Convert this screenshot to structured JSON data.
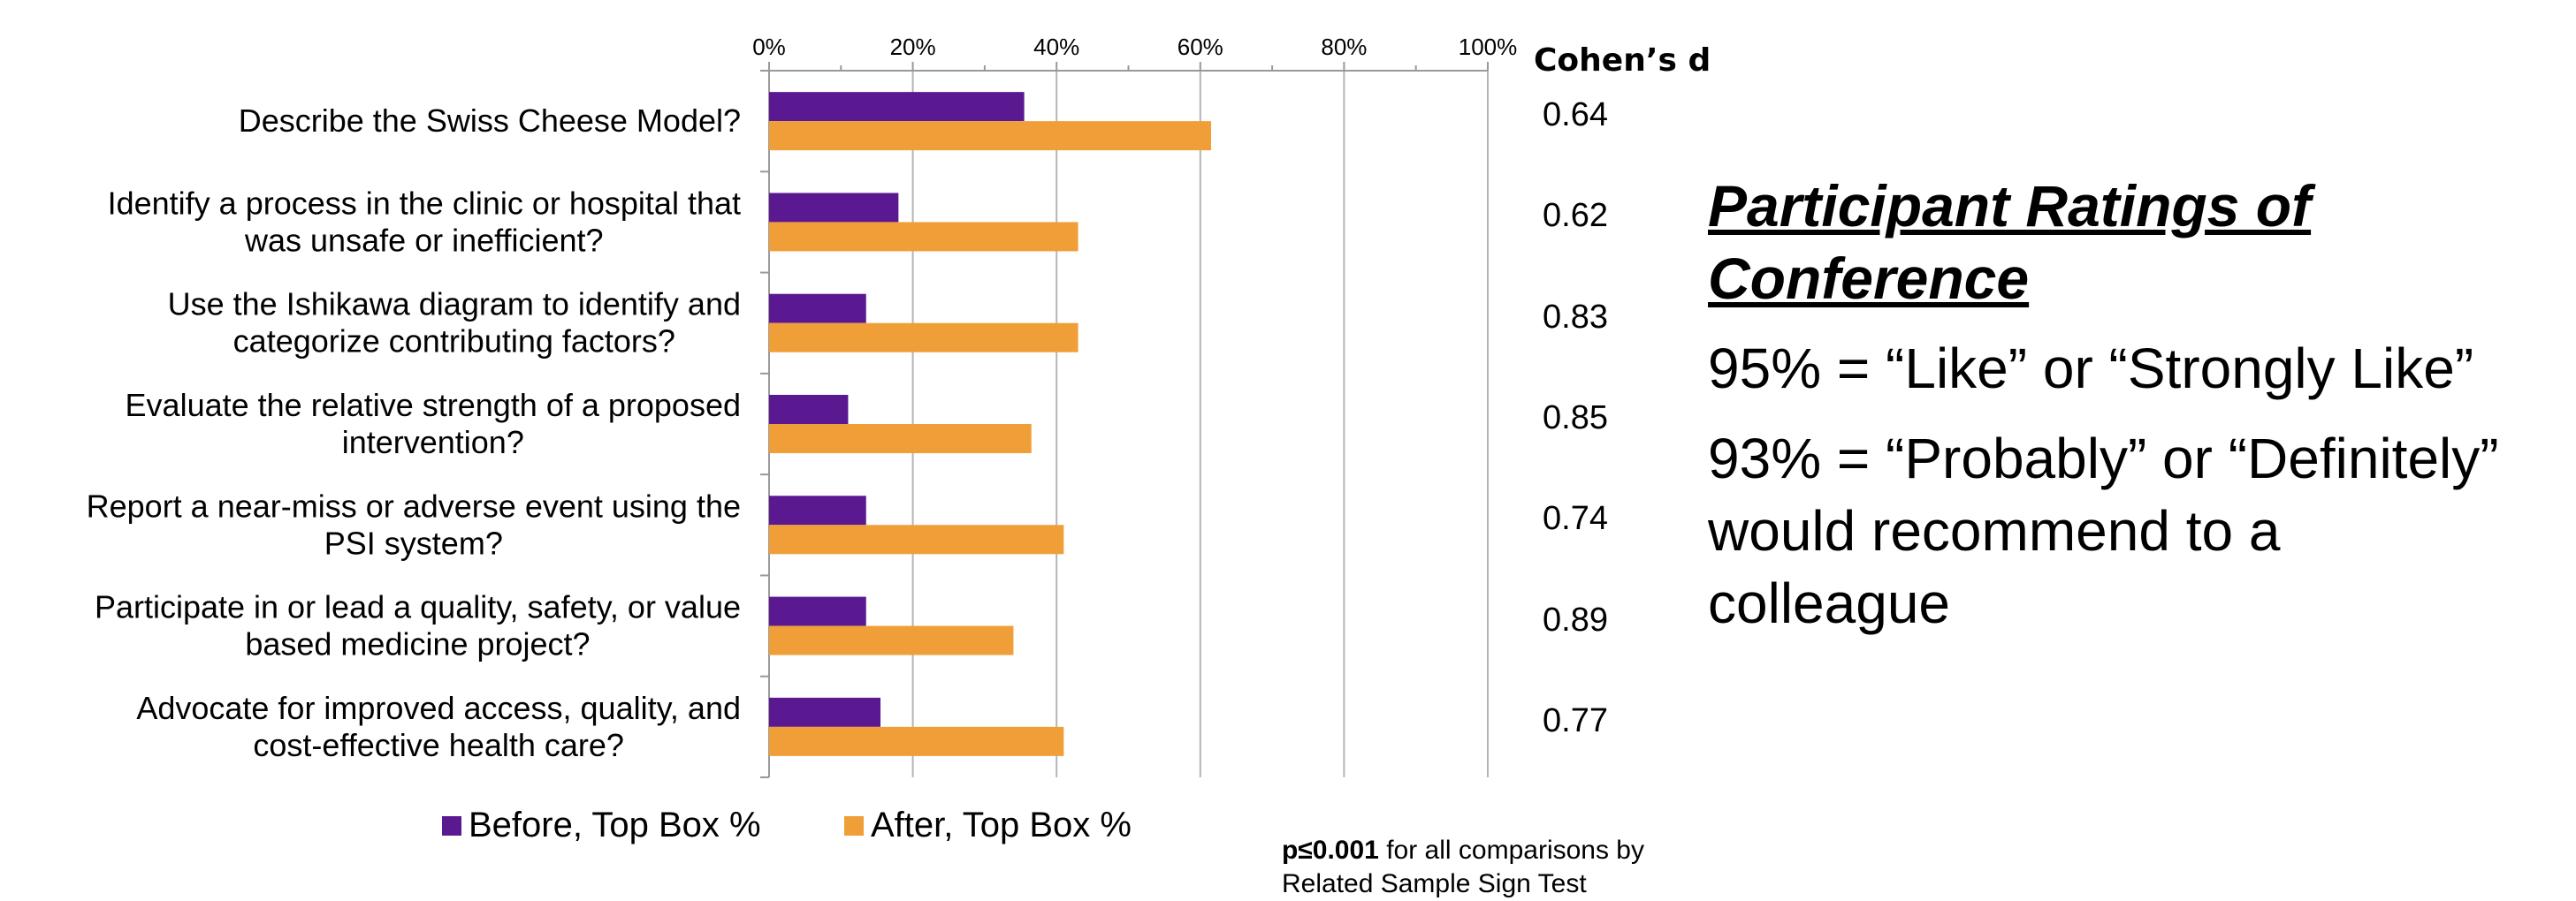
{
  "chart_data": {
    "type": "bar",
    "orientation": "horizontal",
    "categories": [
      [
        "Describe the Swiss Cheese Model?"
      ],
      [
        "Identify a process in the clinic or hospital that",
        "was unsafe or inefficient?"
      ],
      [
        "Use the Ishikawa diagram to identify and",
        "categorize contributing factors?"
      ],
      [
        "Evaluate the relative strength of a proposed",
        "intervention?"
      ],
      [
        "Report a near-miss or adverse event using the",
        "PSI system?"
      ],
      [
        "Participate in or lead a quality, safety, or value",
        "based medicine project?"
      ],
      [
        "Advocate for improved access, quality, and",
        "cost-effective health care?"
      ]
    ],
    "series": [
      {
        "name": "Before, Top Box %",
        "color": "#5B1991",
        "values": [
          35.5,
          18,
          13.5,
          11,
          13.5,
          13.5,
          15.5
        ]
      },
      {
        "name": "After, Top Box %",
        "color": "#F09E37",
        "values": [
          61.5,
          43,
          43,
          36.5,
          41,
          34,
          41
        ]
      }
    ],
    "xlim": [
      0,
      100
    ],
    "xticks": [
      0,
      20,
      40,
      60,
      80,
      100
    ],
    "x_tick_labels": [
      "0%",
      "20%",
      "40%",
      "60%",
      "80%",
      "100%"
    ],
    "xaxis_position": "top",
    "grid": true,
    "legend": "bottom"
  },
  "cohens_d": {
    "header": "Cohen’s d",
    "values": [
      "0.64",
      "0.62",
      "0.83",
      "0.85",
      "0.74",
      "0.89",
      "0.77"
    ]
  },
  "footnote": {
    "bold": "p≤0.001",
    "line1": " for all comparisons by",
    "line2": "Related Sample Sign Test"
  },
  "ratings": {
    "title_line1": "Participant Ratings of",
    "title_line2": "Conference",
    "stat1": "95% = “Like” or “Strongly Like”",
    "stat2_line1": "93% = “Probably” or “Definitely”",
    "stat2_line2": "would recommend to a",
    "stat2_line3": "colleague"
  }
}
